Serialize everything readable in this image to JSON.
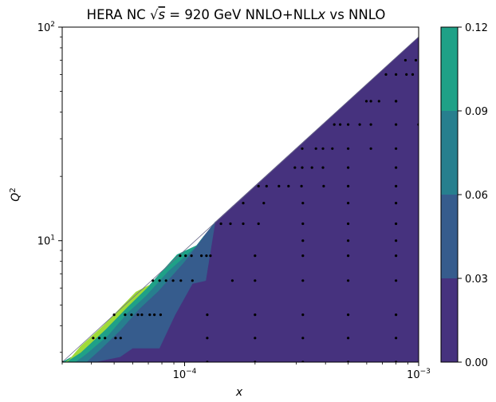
{
  "chart_data": {
    "type": "contour",
    "title": {
      "prefix": "HERA NC ",
      "sqrt_symbol": "√",
      "sqrt_var": "s",
      "middle": " = 920 GeV NNLO+NLL",
      "x_var": "x",
      "suffix": " vs NNLO"
    },
    "xlabel": "x",
    "ylabel": {
      "base": "Q",
      "exponent": "2"
    },
    "x_scale": "log",
    "y_scale": "log",
    "xlim": [
      3e-05,
      0.001
    ],
    "ylim": [
      2.7,
      100
    ],
    "x_ticks": [
      {
        "value": 0.0001,
        "base": "10",
        "exponent": "−4"
      },
      {
        "value": 0.001,
        "base": "10",
        "exponent": "−3"
      }
    ],
    "y_ticks": [
      {
        "value": 10,
        "base": "10",
        "exponent": "1"
      },
      {
        "value": 100,
        "base": "10",
        "exponent": "2"
      }
    ],
    "colorbar": {
      "levels": [
        0.0,
        0.03,
        0.06,
        0.09,
        0.12
      ],
      "tick_labels": [
        "0.00",
        "0.03",
        "0.06",
        "0.09",
        "0.12"
      ],
      "colors": [
        "#46327e",
        "#365c8d",
        "#277f8e",
        "#1fa187",
        "#a0da39"
      ]
    },
    "kinematic_boundary": [
      [
        3e-05,
        2.7
      ],
      [
        0.001,
        90
      ]
    ],
    "contour_regions": [
      {
        "level_index": 0,
        "points": [
          [
            3e-05,
            2.7
          ],
          [
            0.001,
            2.7
          ],
          [
            0.001,
            90
          ],
          [
            0.000135,
            12.2
          ],
          [
            0.000123,
            8.0
          ],
          [
            0.000108,
            6.9
          ],
          [
            7.75e-05,
            4.5
          ],
          [
            5.9e-05,
            3.35
          ],
          [
            4.1e-05,
            2.7
          ]
        ]
      },
      {
        "level_index": 1,
        "points": [
          [
            3e-05,
            2.7
          ],
          [
            4.1e-05,
            2.7
          ],
          [
            5.3e-05,
            2.86
          ],
          [
            6e-05,
            3.14
          ],
          [
            7.8e-05,
            3.14
          ],
          [
            9.1e-05,
            4.5
          ],
          [
            0.000108,
            6.3
          ],
          [
            0.000123,
            6.5
          ],
          [
            0.000135,
            12.2
          ],
          [
            0.000121,
            10.5
          ],
          [
            9.9e-05,
            7.9
          ],
          [
            7.7e-05,
            5.8
          ],
          [
            6.4e-05,
            4.8
          ],
          [
            5.3e-05,
            3.8
          ],
          [
            4.3e-05,
            3.05
          ],
          [
            3.8e-05,
            2.7
          ]
        ]
      },
      {
        "level_index": 2,
        "points": [
          [
            3e-05,
            2.7
          ],
          [
            3.8e-05,
            2.7
          ],
          [
            4.3e-05,
            3.05
          ],
          [
            5.3e-05,
            3.8
          ],
          [
            6.4e-05,
            4.8
          ],
          [
            7.7e-05,
            5.8
          ],
          [
            9.9e-05,
            7.9
          ],
          [
            0.000121,
            10.5
          ],
          [
            0.000113,
            9.5
          ],
          [
            8.5e-05,
            7.2
          ],
          [
            6.8e-05,
            5.5
          ],
          [
            5.7e-05,
            4.6
          ],
          [
            4.7e-05,
            3.6
          ],
          [
            3.8e-05,
            2.95
          ],
          [
            3.4e-05,
            2.7
          ]
        ]
      },
      {
        "level_index": 3,
        "points": [
          [
            3e-05,
            2.7
          ],
          [
            3.4e-05,
            2.7
          ],
          [
            3.8e-05,
            2.95
          ],
          [
            4.7e-05,
            3.6
          ],
          [
            5.7e-05,
            4.6
          ],
          [
            6.8e-05,
            5.5
          ],
          [
            8.5e-05,
            7.2
          ],
          [
            0.000113,
            9.5
          ],
          [
            9.3e-05,
            8.6
          ],
          [
            7.1e-05,
            6.2
          ],
          [
            5.7e-05,
            4.9
          ],
          [
            4.6e-05,
            3.85
          ],
          [
            3.6e-05,
            3.0
          ]
        ]
      },
      {
        "level_index": 4,
        "points": [
          [
            3.1e-05,
            2.7
          ],
          [
            3.6e-05,
            3.0
          ],
          [
            4.6e-05,
            3.85
          ],
          [
            5.7e-05,
            4.9
          ],
          [
            7.1e-05,
            6.2
          ],
          [
            6.2e-05,
            5.75
          ],
          [
            4.5e-05,
            4.0
          ],
          [
            3.6e-05,
            3.2
          ],
          [
            3.2e-05,
            2.75
          ]
        ]
      }
    ],
    "data_points": [
      [
        3e-05,
        2.7
      ],
      [
        4.07e-05,
        3.5
      ],
      [
        4.32e-05,
        3.5
      ],
      [
        4.57e-05,
        3.5
      ],
      [
        5.07e-05,
        3.5
      ],
      [
        5.33e-05,
        3.5
      ],
      [
        5e-05,
        4.5
      ],
      [
        5.57e-05,
        4.5
      ],
      [
        5.93e-05,
        4.5
      ],
      [
        6.32e-05,
        4.5
      ],
      [
        6.57e-05,
        4.5
      ],
      [
        7.1e-05,
        4.5
      ],
      [
        7.43e-05,
        4.5
      ],
      [
        7.9e-05,
        4.5
      ],
      [
        7.32e-05,
        6.5
      ],
      [
        7.82e-05,
        6.5
      ],
      [
        8.33e-05,
        6.5
      ],
      [
        8.93e-05,
        6.5
      ],
      [
        9.64e-05,
        6.5
      ],
      [
        0.000108,
        6.5
      ],
      [
        9.57e-05,
        8.5
      ],
      [
        0.000101,
        8.5
      ],
      [
        0.000107,
        8.5
      ],
      [
        0.000118,
        8.5
      ],
      [
        0.000124,
        8.5
      ],
      [
        0.000129,
        8.5
      ],
      [
        0.000143,
        12
      ],
      [
        0.000157,
        12
      ],
      [
        0.000178,
        12
      ],
      [
        0.000207,
        12
      ],
      [
        0.000178,
        15
      ],
      [
        0.000218,
        15
      ],
      [
        0.000207,
        18
      ],
      [
        0.000224,
        18
      ],
      [
        0.000253,
        18
      ],
      [
        0.000278,
        18
      ],
      [
        0.000316,
        18
      ],
      [
        0.000393,
        18
      ],
      [
        0.0005,
        18
      ],
      [
        0.000296,
        22
      ],
      [
        0.000318,
        22
      ],
      [
        0.00035,
        22
      ],
      [
        0.00039,
        22
      ],
      [
        0.0005,
        22
      ],
      [
        0.000318,
        27
      ],
      [
        0.000364,
        27
      ],
      [
        0.00039,
        27
      ],
      [
        0.000428,
        27
      ],
      [
        0.0005,
        27
      ],
      [
        0.000625,
        27
      ],
      [
        0.0008,
        27
      ],
      [
        0.000436,
        35
      ],
      [
        0.000462,
        35
      ],
      [
        0.0005,
        35
      ],
      [
        0.00056,
        35
      ],
      [
        0.000625,
        35
      ],
      [
        0.0008,
        35
      ],
      [
        0.001,
        35
      ],
      [
        0.000598,
        45
      ],
      [
        0.000625,
        45
      ],
      [
        0.000677,
        45
      ],
      [
        0.0008,
        45
      ],
      [
        0.000725,
        60
      ],
      [
        0.0008,
        60
      ],
      [
        0.000887,
        60
      ],
      [
        0.000943,
        60
      ],
      [
        0.000878,
        70
      ],
      [
        0.000973,
        70
      ],
      [
        0.000125,
        2.7
      ],
      [
        0.0002,
        2.7
      ],
      [
        0.00032,
        2.7
      ],
      [
        0.0005,
        2.7
      ],
      [
        0.0008,
        2.7
      ],
      [
        0.000125,
        3.5
      ],
      [
        0.0002,
        3.5
      ],
      [
        0.00032,
        3.5
      ],
      [
        0.0005,
        3.5
      ],
      [
        0.0008,
        3.5
      ],
      [
        0.000125,
        4.5
      ],
      [
        0.0002,
        4.5
      ],
      [
        0.00032,
        4.5
      ],
      [
        0.0005,
        4.5
      ],
      [
        0.0008,
        4.5
      ],
      [
        0.00016,
        6.5
      ],
      [
        0.0002,
        6.5
      ],
      [
        0.00032,
        6.5
      ],
      [
        0.0005,
        6.5
      ],
      [
        0.0008,
        6.5
      ],
      [
        0.0002,
        8.5
      ],
      [
        0.00032,
        8.5
      ],
      [
        0.0005,
        8.5
      ],
      [
        0.0008,
        8.5
      ],
      [
        0.00032,
        10
      ],
      [
        0.0005,
        10
      ],
      [
        0.0008,
        10
      ],
      [
        0.00032,
        12
      ],
      [
        0.0005,
        12
      ],
      [
        0.0008,
        12
      ],
      [
        0.00032,
        15
      ],
      [
        0.0005,
        15
      ],
      [
        0.0008,
        15
      ],
      [
        0.0008,
        18
      ],
      [
        0.0008,
        22
      ],
      [
        0.0008,
        45
      ]
    ]
  }
}
